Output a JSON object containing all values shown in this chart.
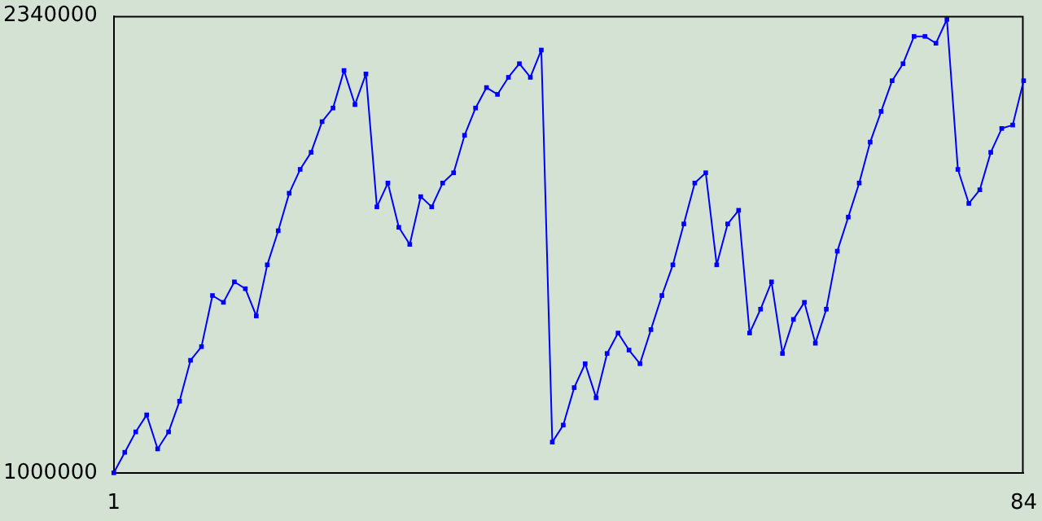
{
  "chart_data": {
    "type": "line",
    "x": [
      1,
      2,
      3,
      4,
      5,
      6,
      7,
      8,
      9,
      10,
      11,
      12,
      13,
      14,
      15,
      16,
      17,
      18,
      19,
      20,
      21,
      22,
      23,
      24,
      25,
      26,
      27,
      28,
      29,
      30,
      31,
      32,
      33,
      34,
      35,
      36,
      37,
      38,
      39,
      40,
      41,
      42,
      43,
      44,
      45,
      46,
      47,
      48,
      49,
      50,
      51,
      52,
      53,
      54,
      55,
      56,
      57,
      58,
      59,
      60,
      61,
      62,
      63,
      64,
      65,
      66,
      67,
      68,
      69,
      70,
      71,
      72,
      73,
      74,
      75,
      76,
      77,
      78,
      79,
      80,
      81,
      82,
      83,
      84
    ],
    "series": [
      {
        "color": "#0000ff",
        "values": [
          1000000,
          1060000,
          1120000,
          1170000,
          1070000,
          1120000,
          1210000,
          1330000,
          1370000,
          1520000,
          1500000,
          1560000,
          1540000,
          1460000,
          1610000,
          1710000,
          1820000,
          1890000,
          1940000,
          2030000,
          2070000,
          2180000,
          2080000,
          2170000,
          1780000,
          1850000,
          1720000,
          1670000,
          1810000,
          1780000,
          1850000,
          1880000,
          1990000,
          2070000,
          2130000,
          2110000,
          2160000,
          2200000,
          2160000,
          2240000,
          1090000,
          1140000,
          1250000,
          1320000,
          1220000,
          1350000,
          1410000,
          1360000,
          1320000,
          1420000,
          1520000,
          1610000,
          1730000,
          1850000,
          1880000,
          1610000,
          1730000,
          1770000,
          1410000,
          1480000,
          1560000,
          1350000,
          1450000,
          1500000,
          1380000,
          1480000,
          1650000,
          1750000,
          1850000,
          1970000,
          2060000,
          2150000,
          2200000,
          2280000,
          2280000,
          2260000,
          2330000,
          1890000,
          1790000,
          1830000,
          1940000,
          2010000,
          2020000,
          2150000
        ]
      }
    ],
    "xlim": [
      1,
      84
    ],
    "xticks": [
      1,
      84
    ],
    "ylim": [
      1000000,
      2340000
    ],
    "yticks": [
      1000000,
      2340000
    ],
    "grid": false,
    "legend": false,
    "marker": "square",
    "line_style": "solid"
  }
}
